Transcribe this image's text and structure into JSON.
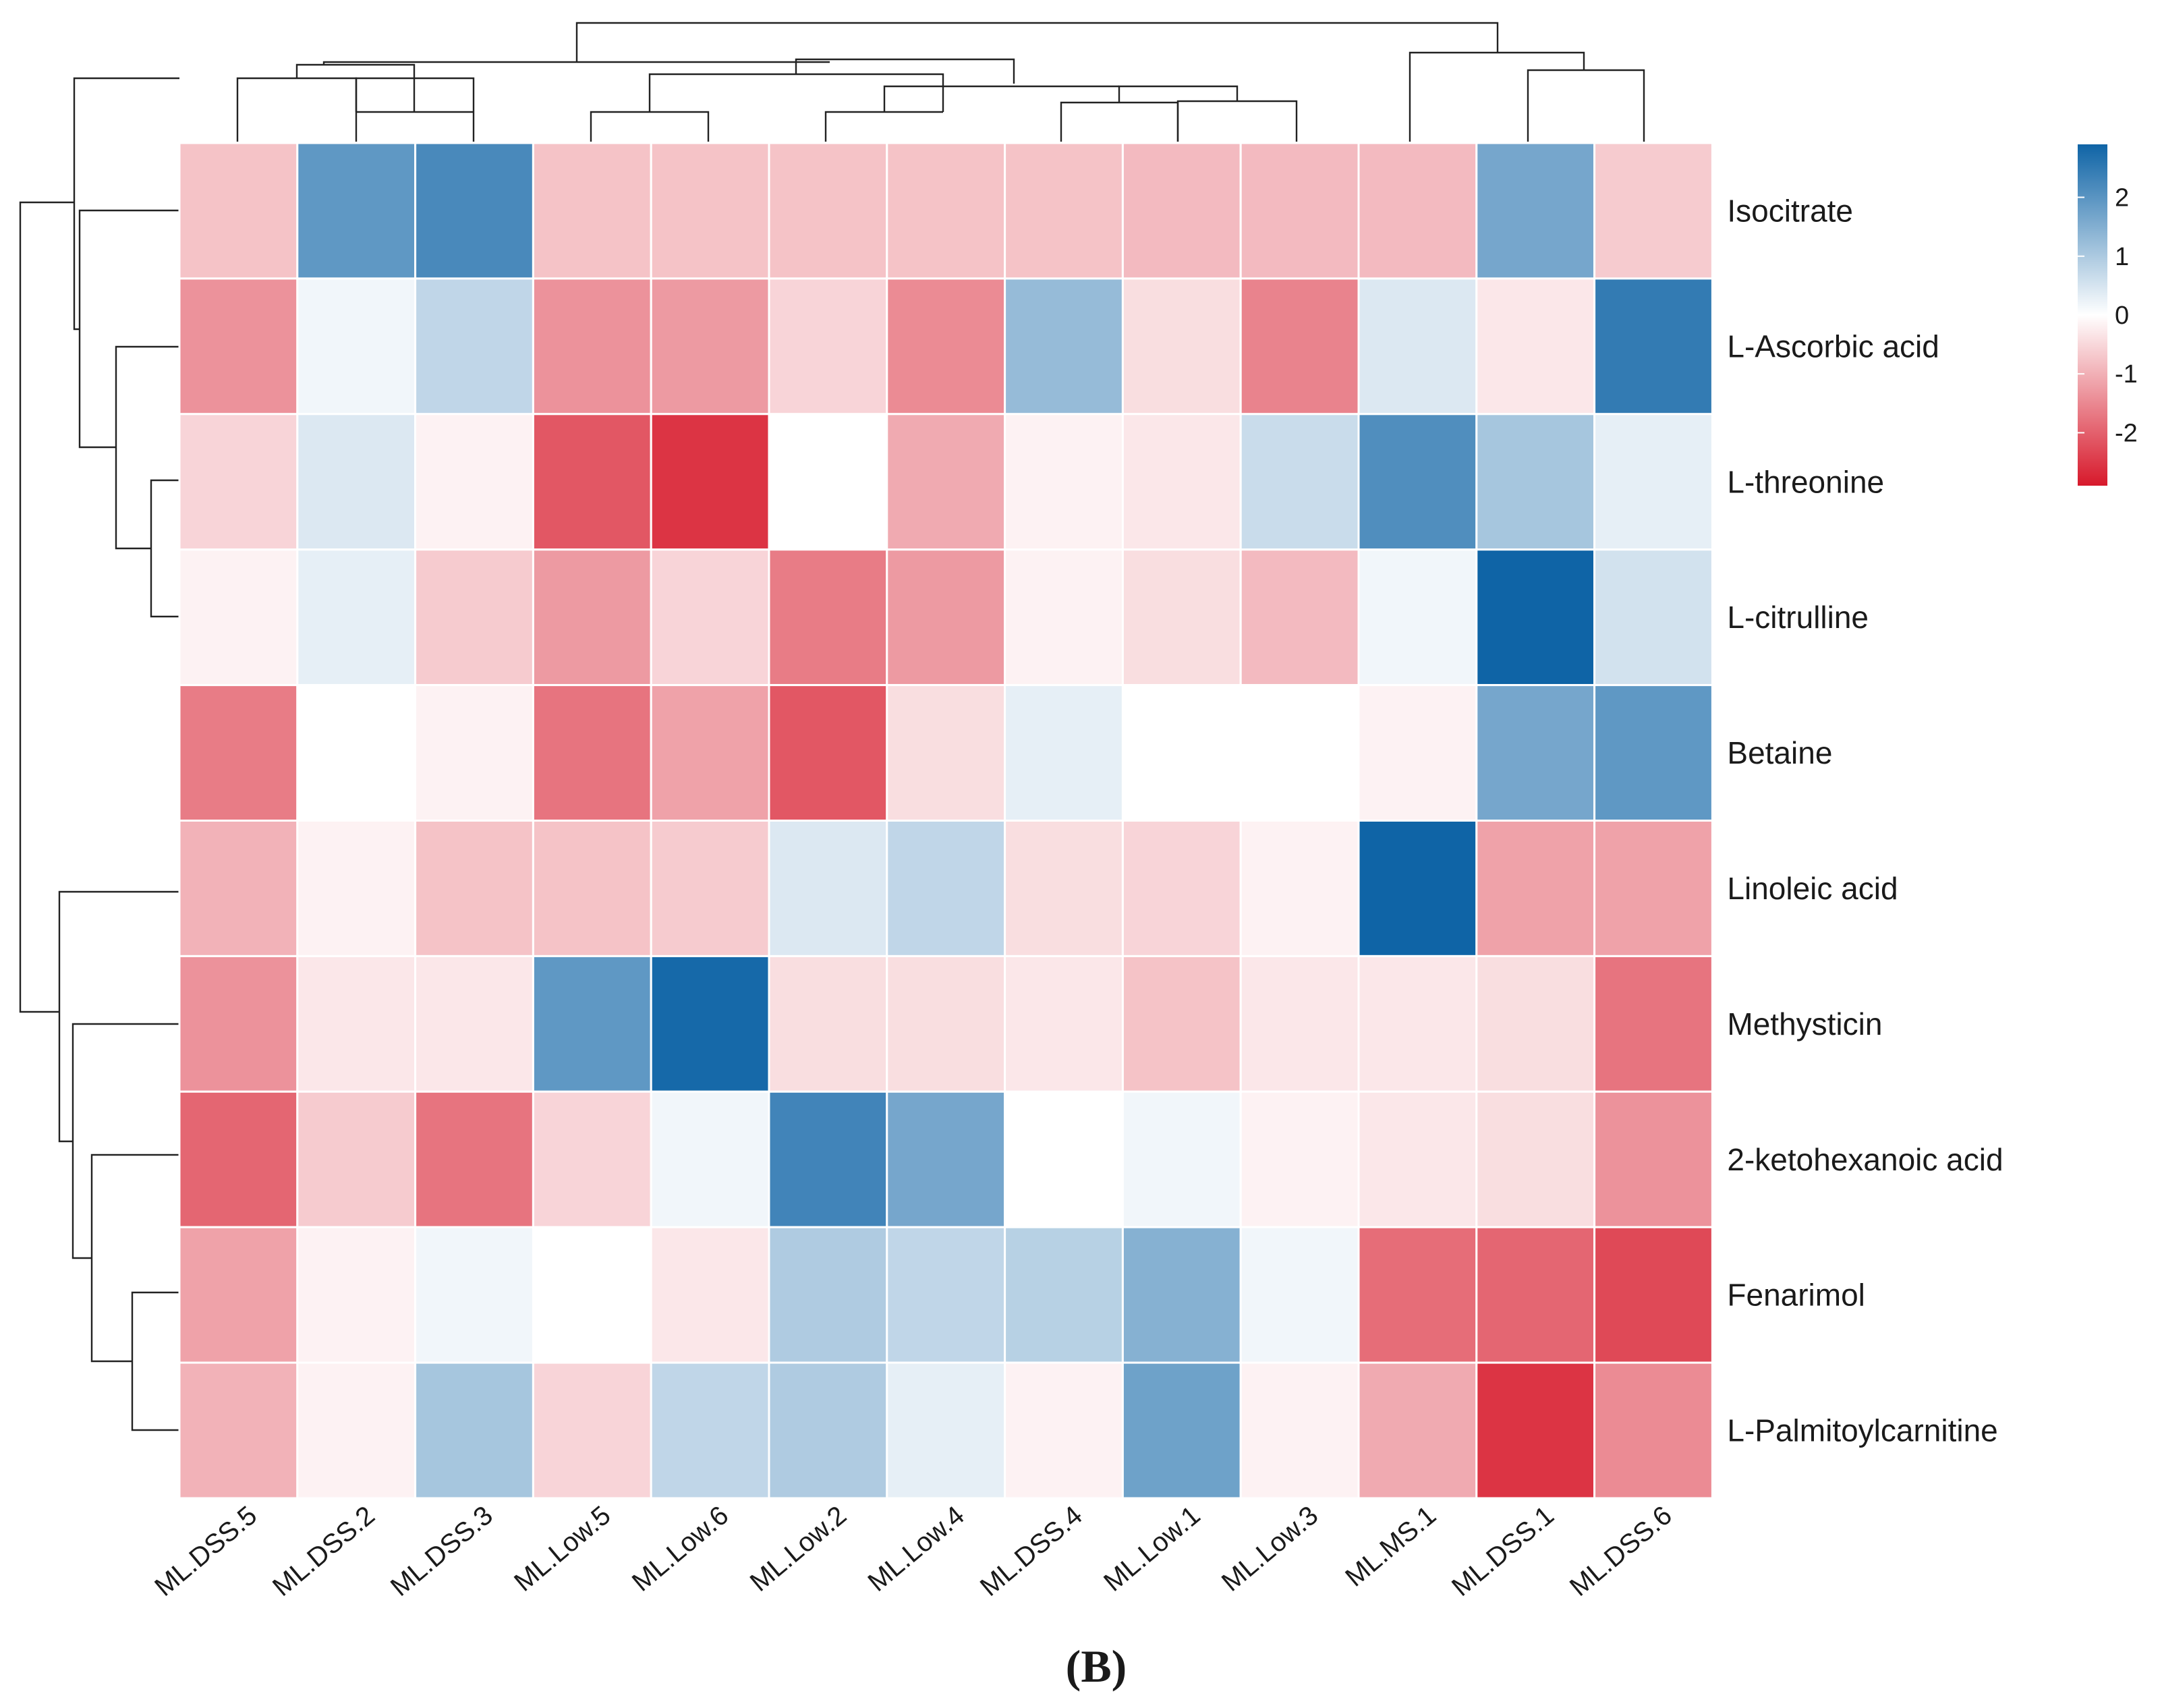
{
  "chart_data": {
    "type": "heatmap",
    "title": "",
    "panel_label": "(B)",
    "rows": [
      "Isocitrate",
      "L-Ascorbic acid",
      "L-threonine",
      "L-citrulline",
      "Betaine",
      "Linoleic acid",
      "Methysticin",
      "2-ketohexanoic acid",
      "Fenarimol",
      "L-Palmitoylcarnitine"
    ],
    "columns": [
      "ML.DSS.5",
      "ML.DSS.2",
      "ML.DSS.3",
      "ML.Low.5",
      "ML.Low.6",
      "ML.Low.2",
      "ML.Low.4",
      "ML.DSS.4",
      "ML.Low.1",
      "ML.Low.3",
      "ML.MS.1",
      "ML.DSS.1",
      "ML.DSS.6"
    ],
    "values": [
      [
        -0.6,
        1.8,
        2.1,
        -0.6,
        -0.6,
        -0.6,
        -0.6,
        -0.6,
        -0.7,
        -0.7,
        -0.7,
        1.5,
        -0.5
      ],
      [
        -1.2,
        0.1,
        0.6,
        -1.2,
        -1.1,
        -0.4,
        -1.3,
        1.1,
        -0.3,
        -1.4,
        0.3,
        -0.2,
        2.4
      ],
      [
        -0.4,
        0.3,
        -0.1,
        -2.0,
        -2.5,
        0.0,
        -0.9,
        -0.1,
        -0.2,
        0.5,
        2.0,
        0.9,
        0.2
      ],
      [
        -0.1,
        0.2,
        -0.5,
        -1.1,
        -0.4,
        -1.5,
        -1.1,
        -0.1,
        -0.3,
        -0.7,
        0.1,
        2.9,
        0.4
      ],
      [
        -1.5,
        0.0,
        -0.1,
        -1.6,
        -1.0,
        -2.0,
        -0.3,
        0.2,
        0.0,
        0.0,
        -0.1,
        1.5,
        1.8
      ],
      [
        -0.8,
        -0.1,
        -0.6,
        -0.6,
        -0.5,
        0.3,
        0.6,
        -0.3,
        -0.4,
        -0.1,
        2.9,
        -1.0,
        -1.0
      ],
      [
        -1.2,
        -0.2,
        -0.2,
        1.8,
        2.8,
        -0.3,
        -0.3,
        -0.2,
        -0.6,
        -0.2,
        -0.2,
        -0.3,
        -1.6
      ],
      [
        -1.8,
        -0.5,
        -1.6,
        -0.4,
        0.1,
        2.2,
        1.5,
        0.0,
        0.1,
        -0.1,
        -0.2,
        -0.3,
        -1.2
      ],
      [
        -1.0,
        -0.1,
        0.1,
        0.0,
        -0.2,
        0.8,
        0.6,
        0.7,
        1.3,
        0.1,
        -1.7,
        -1.8,
        -2.2
      ],
      [
        -0.8,
        -0.1,
        0.9,
        -0.4,
        0.6,
        0.8,
        0.2,
        -0.1,
        1.6,
        -0.1,
        -0.9,
        -2.5,
        -1.3
      ]
    ],
    "legend": {
      "position": "top-right",
      "ticks": [
        2,
        1,
        0,
        -1,
        -2
      ],
      "min": -2.9,
      "max": 2.9,
      "colors": {
        "high": "#1f6fb0",
        "mid": "#ffffff",
        "low": "#d7192b"
      }
    }
  }
}
